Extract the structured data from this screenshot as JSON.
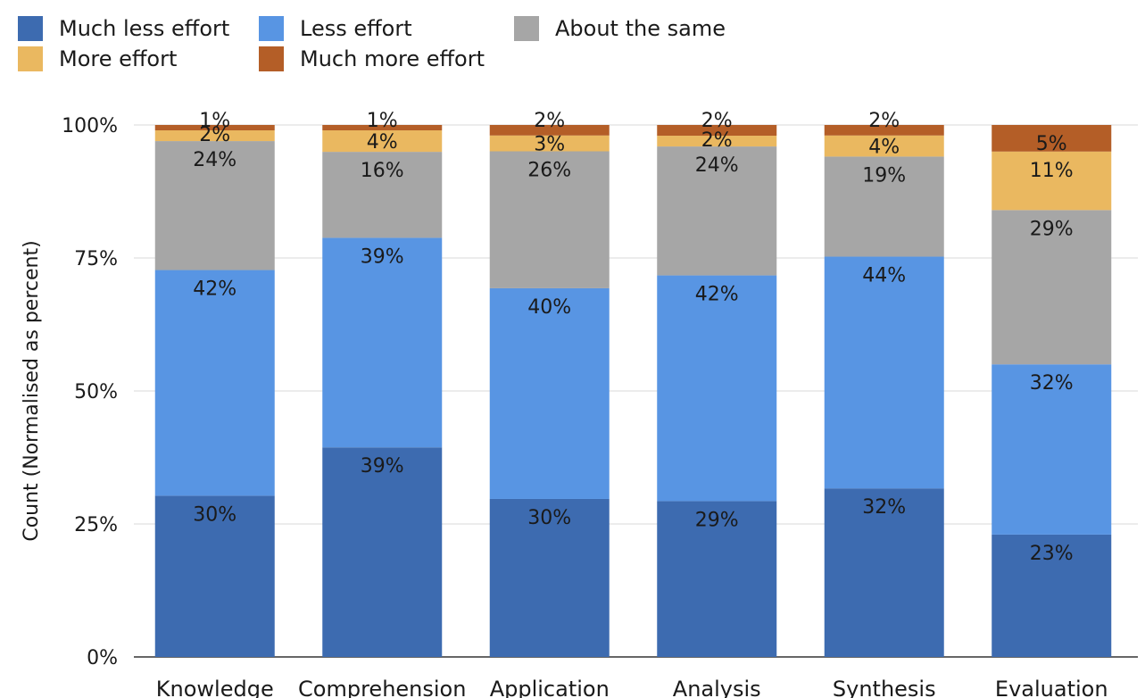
{
  "chart_data": {
    "type": "bar",
    "stacked": true,
    "normalized": true,
    "ylabel": "Count (Normalised as percent)",
    "ylim": [
      0,
      100
    ],
    "y_ticks": [
      "0%",
      "25%",
      "50%",
      "75%",
      "100%"
    ],
    "categories": [
      "Knowledge",
      "Comprehension",
      "Application",
      "Analysis",
      "Synthesis",
      "Evaluation"
    ],
    "legend_position": "top-left",
    "grid": "horizontal",
    "series": [
      {
        "name": "Much less effort",
        "color": "#3d6bb0",
        "values": [
          30,
          39,
          30,
          29,
          32,
          23
        ]
      },
      {
        "name": "Less effort",
        "color": "#5895e3",
        "values": [
          42,
          39,
          40,
          42,
          44,
          32
        ]
      },
      {
        "name": "About the same",
        "color": "#a6a6a6",
        "values": [
          24,
          16,
          26,
          24,
          19,
          29
        ]
      },
      {
        "name": "More effort",
        "color": "#eab860",
        "values": [
          2,
          4,
          3,
          2,
          4,
          11
        ]
      },
      {
        "name": "Much more effort",
        "color": "#b45e27",
        "values": [
          1,
          1,
          2,
          2,
          2,
          5
        ]
      }
    ],
    "data_labels": [
      [
        "30%",
        "39%",
        "30%",
        "29%",
        "32%",
        "23%"
      ],
      [
        "42%",
        "39%",
        "40%",
        "42%",
        "44%",
        "32%"
      ],
      [
        "24%",
        "16%",
        "26%",
        "24%",
        "19%",
        "29%"
      ],
      [
        "2%",
        "4%",
        "3%",
        "2%",
        "4%",
        "11%"
      ],
      [
        "1%",
        "1%",
        "2%",
        "2%",
        "2%",
        "5%"
      ]
    ]
  }
}
